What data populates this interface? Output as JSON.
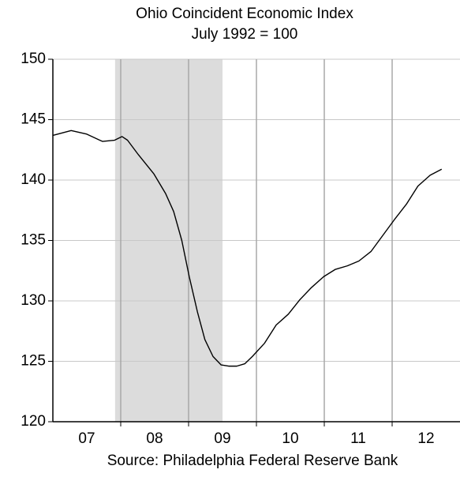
{
  "chart_data": {
    "type": "line",
    "title": "Ohio Coincident Economic Index",
    "subtitle": "July 1992 = 100",
    "source": "Source: Philadelphia Federal Reserve Bank",
    "x": [
      2007.0,
      2007.27,
      2007.5,
      2007.73,
      2007.91,
      2008.02,
      2008.1,
      2008.26,
      2008.49,
      2008.66,
      2008.78,
      2008.9,
      2009.01,
      2009.13,
      2009.24,
      2009.36,
      2009.48,
      2009.59,
      2009.71,
      2009.83,
      2009.94,
      2010.12,
      2010.29,
      2010.47,
      2010.64,
      2010.81,
      2010.99,
      2011.16,
      2011.34,
      2011.51,
      2011.69,
      2011.86,
      2012.03,
      2012.21,
      2012.38,
      2012.56,
      2012.73
    ],
    "values": [
      143.7,
      144.1,
      143.8,
      143.2,
      143.3,
      143.6,
      143.3,
      142.1,
      140.5,
      138.9,
      137.4,
      135.0,
      132.0,
      129.1,
      126.8,
      125.4,
      124.7,
      124.6,
      124.6,
      124.8,
      125.4,
      126.5,
      128.0,
      128.9,
      130.1,
      131.1,
      132.0,
      132.6,
      132.9,
      133.3,
      134.1,
      135.4,
      136.7,
      138.0,
      139.5,
      140.4,
      140.9
    ],
    "color": "#000000",
    "xlim": [
      2007,
      2013
    ],
    "xticks": [
      {
        "value": 2007.5,
        "label": "07"
      },
      {
        "value": 2008.5,
        "label": "08"
      },
      {
        "value": 2009.5,
        "label": "09"
      },
      {
        "value": 2010.5,
        "label": "10"
      },
      {
        "value": 2011.5,
        "label": "11"
      },
      {
        "value": 2012.5,
        "label": "12"
      }
    ],
    "xgrid": [
      2008,
      2009,
      2010,
      2011,
      2012
    ],
    "ylim": [
      120,
      150
    ],
    "yticks": [
      120,
      125,
      130,
      135,
      140,
      145,
      150
    ],
    "grid": true,
    "shaded_ranges": [
      [
        2007.917,
        2009.5
      ]
    ]
  }
}
